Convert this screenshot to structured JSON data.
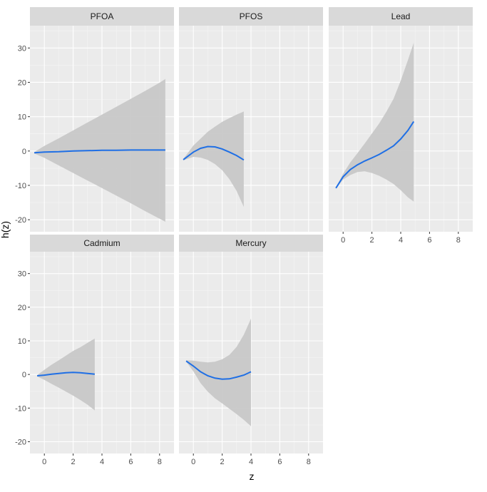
{
  "chart_data": {
    "type": "line",
    "xlabel": "z",
    "ylabel": "h(z)",
    "xlim": [
      -1,
      9
    ],
    "ylim": [
      -23.5,
      36.5
    ],
    "x_ticks": [
      0,
      2,
      4,
      6,
      8
    ],
    "y_ticks": [
      -20,
      -10,
      0,
      10,
      20,
      30
    ],
    "grid": true,
    "colors": {
      "panel_bg": "#ebebeb",
      "strip_bg": "#d9d9d9",
      "grid_major": "#ffffff",
      "grid_minor": "#f5f5f5",
      "ribbon": "#c8c8c8",
      "line": "#1f6fe5",
      "tick": "#333333"
    },
    "panels": [
      {
        "title": "PFOA",
        "series": [
          {
            "name": "estimate",
            "x": [
              -0.7,
              0,
              1,
              2,
              3,
              4,
              5,
              6,
              7,
              8,
              8.4
            ],
            "y": [
              -0.5,
              -0.3,
              -0.2,
              0,
              0.1,
              0.2,
              0.2,
              0.3,
              0.3,
              0.3,
              0.3
            ]
          },
          {
            "name": "lower",
            "x": [
              -0.7,
              0,
              1,
              2,
              3,
              4,
              5,
              6,
              7,
              8,
              8.4
            ],
            "y": [
              -0.7,
              -2,
              -4.2,
              -6.4,
              -8.6,
              -10.8,
              -13,
              -15.2,
              -17.5,
              -19.7,
              -20.6
            ]
          },
          {
            "name": "upper",
            "x": [
              -0.7,
              0,
              1,
              2,
              3,
              4,
              5,
              6,
              7,
              8,
              8.4
            ],
            "y": [
              -0.3,
              1.5,
              3.7,
              6,
              8.3,
              10.6,
              12.9,
              15.2,
              17.5,
              19.9,
              21
            ]
          }
        ]
      },
      {
        "title": "PFOS",
        "series": [
          {
            "name": "estimate",
            "x": [
              -0.7,
              0,
              0.5,
              1,
              1.5,
              2,
              2.5,
              3,
              3.5
            ],
            "y": [
              -2.5,
              -0.3,
              0.8,
              1.3,
              1.2,
              0.6,
              -0.3,
              -1.3,
              -2.6
            ]
          },
          {
            "name": "lower",
            "x": [
              -0.7,
              0,
              0.5,
              1,
              1.5,
              2,
              2.5,
              3,
              3.5
            ],
            "y": [
              -2.7,
              -1.7,
              -1.9,
              -2.6,
              -3.8,
              -5.6,
              -8.2,
              -11.6,
              -16.3
            ]
          },
          {
            "name": "upper",
            "x": [
              -0.7,
              0,
              0.5,
              1,
              1.5,
              2,
              2.5,
              3,
              3.5
            ],
            "y": [
              -2.3,
              1.6,
              3.6,
              5.6,
              7.1,
              8.5,
              9.6,
              10.6,
              11.5
            ]
          }
        ]
      },
      {
        "title": "Lead",
        "series": [
          {
            "name": "estimate",
            "x": [
              -0.5,
              0,
              0.5,
              1,
              1.5,
              2,
              2.5,
              3,
              3.5,
              4,
              4.5,
              4.9
            ],
            "y": [
              -10.8,
              -7.5,
              -5.4,
              -4,
              -2.9,
              -2,
              -1,
              0.2,
              1.5,
              3.5,
              6,
              8.6
            ]
          },
          {
            "name": "lower",
            "x": [
              -0.5,
              0,
              0.5,
              1,
              1.5,
              2,
              2.5,
              3,
              3.5,
              4,
              4.5,
              4.9
            ],
            "y": [
              -10.9,
              -8.3,
              -7,
              -6.1,
              -5.9,
              -6.4,
              -7.2,
              -8.3,
              -9.6,
              -11.4,
              -13.5,
              -14.7
            ]
          },
          {
            "name": "upper",
            "x": [
              -0.5,
              0,
              0.5,
              1,
              1.5,
              2,
              2.5,
              3,
              3.5,
              4,
              4.5,
              4.9
            ],
            "y": [
              -10.6,
              -6.6,
              -3.3,
              -0.6,
              2.2,
              5.1,
              8,
              11.4,
              15.2,
              20.5,
              26.5,
              31.5
            ]
          }
        ]
      },
      {
        "title": "Cadmium",
        "series": [
          {
            "name": "estimate",
            "x": [
              -0.5,
              0,
              0.5,
              1,
              1.5,
              2,
              2.5,
              3,
              3.5
            ],
            "y": [
              -0.4,
              -0.2,
              0.1,
              0.3,
              0.5,
              0.6,
              0.5,
              0.3,
              0.1
            ]
          },
          {
            "name": "lower",
            "x": [
              -0.5,
              0,
              0.5,
              1,
              1.5,
              2,
              2.5,
              3,
              3.5
            ],
            "y": [
              -0.6,
              -1.6,
              -2.8,
              -3.9,
              -5.1,
              -6.3,
              -7.6,
              -9,
              -10.7
            ]
          },
          {
            "name": "upper",
            "x": [
              -0.5,
              0,
              0.5,
              1,
              1.5,
              2,
              2.5,
              3,
              3.5
            ],
            "y": [
              -0.2,
              1.4,
              2.9,
              4.2,
              5.6,
              7,
              8.1,
              9.4,
              10.7
            ]
          }
        ]
      },
      {
        "title": "Mercury",
        "series": [
          {
            "name": "estimate",
            "x": [
              -0.5,
              0,
              0.5,
              1,
              1.5,
              2,
              2.5,
              3,
              3.5,
              4
            ],
            "y": [
              4,
              2.5,
              0.8,
              -0.4,
              -1.1,
              -1.4,
              -1.3,
              -0.8,
              -0.2,
              0.8
            ]
          },
          {
            "name": "lower",
            "x": [
              -0.5,
              0,
              0.5,
              1,
              1.5,
              2,
              2.5,
              3,
              3.5,
              4
            ],
            "y": [
              3.8,
              0.9,
              -2.6,
              -5.1,
              -7.1,
              -8.6,
              -10.2,
              -11.8,
              -13.5,
              -15.4
            ]
          },
          {
            "name": "upper",
            "x": [
              -0.5,
              0,
              0.5,
              1,
              1.5,
              2,
              2.5,
              3,
              3.5,
              4
            ],
            "y": [
              4.2,
              4.1,
              3.8,
              3.6,
              3.8,
              4.5,
              5.8,
              8.2,
              11.8,
              16.6
            ]
          }
        ]
      }
    ]
  }
}
